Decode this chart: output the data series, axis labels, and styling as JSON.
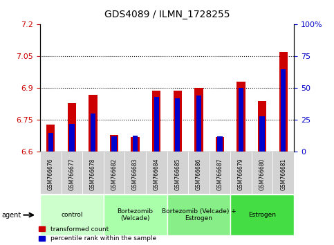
{
  "title": "GDS4089 / ILMN_1728255",
  "samples": [
    "GSM766676",
    "GSM766677",
    "GSM766678",
    "GSM766682",
    "GSM766683",
    "GSM766684",
    "GSM766685",
    "GSM766686",
    "GSM766687",
    "GSM766679",
    "GSM766680",
    "GSM766681"
  ],
  "transformed_counts": [
    6.73,
    6.83,
    6.87,
    6.68,
    6.67,
    6.89,
    6.89,
    6.9,
    6.67,
    6.93,
    6.84,
    7.07
  ],
  "percentile_ranks": [
    15,
    22,
    30,
    12,
    13,
    43,
    42,
    44,
    12,
    50,
    28,
    65
  ],
  "ylim_left": [
    6.6,
    7.2
  ],
  "ylim_right": [
    0,
    100
  ],
  "yticks_left": [
    6.6,
    6.75,
    6.9,
    7.05,
    7.2
  ],
  "yticks_right": [
    0,
    25,
    50,
    75,
    100
  ],
  "ytick_labels_left": [
    "6.6",
    "6.75",
    "6.9",
    "7.05",
    "7.2"
  ],
  "ytick_labels_right": [
    "0",
    "25",
    "50",
    "75",
    "100%"
  ],
  "grid_values": [
    6.75,
    6.9,
    7.05
  ],
  "bar_color_red": "#cc0000",
  "bar_color_blue": "#0000cc",
  "agent_groups": [
    {
      "label": "control",
      "start": 0,
      "end": 3,
      "color": "#ccffcc"
    },
    {
      "label": "Bortezomib\n(Velcade)",
      "start": 3,
      "end": 6,
      "color": "#aaffaa"
    },
    {
      "label": "Bortezomib (Velcade) +\nEstrogen",
      "start": 6,
      "end": 9,
      "color": "#88ff88"
    },
    {
      "label": "Estrogen",
      "start": 9,
      "end": 12,
      "color": "#44ff44"
    }
  ],
  "legend_items": [
    {
      "label": "transformed count",
      "color": "#cc0000"
    },
    {
      "label": "percentile rank within the sample",
      "color": "#0000cc"
    }
  ],
  "yaxis_left_color": "#cc0000",
  "yaxis_right_color": "#0000cc",
  "bar_width": 0.4,
  "baseline": 6.6
}
